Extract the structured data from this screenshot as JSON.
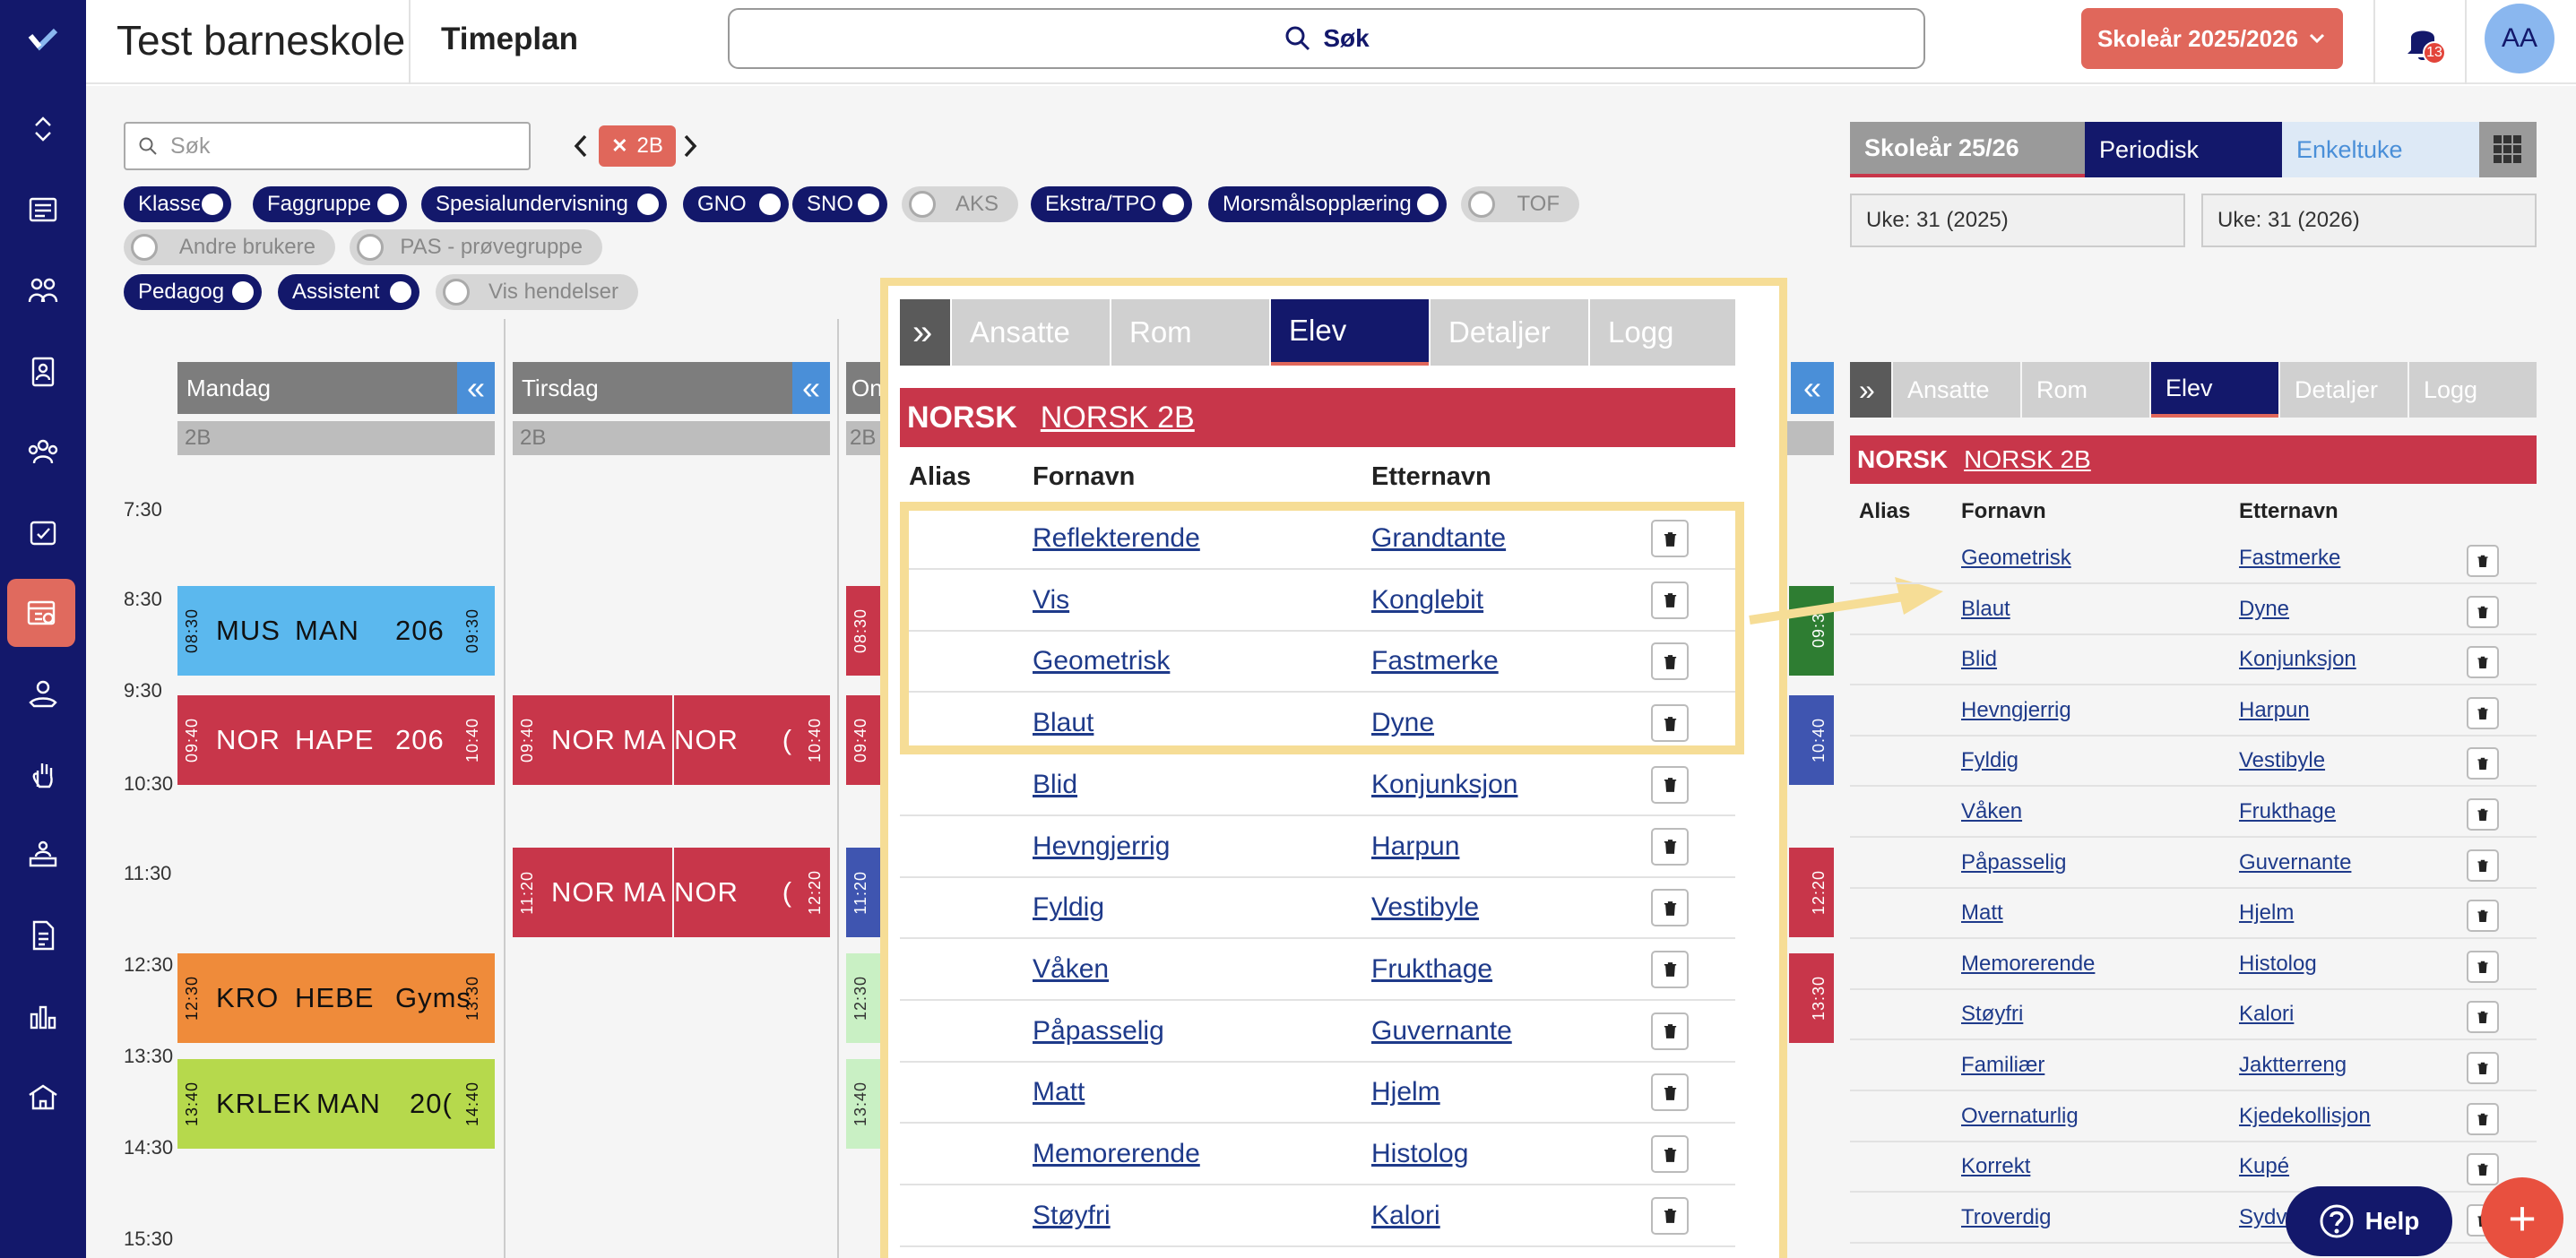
{
  "header": {
    "school_name": "Test barneskole",
    "page_title": "Timeplan",
    "search_label": "Søk",
    "year_button": "Skoleår 2025/2026",
    "notification_count": "13",
    "avatar_initials": "AA"
  },
  "toolbar": {
    "search_placeholder": "Søk",
    "class_chip": "2B"
  },
  "filters": [
    {
      "label": "Klasse",
      "on": true
    },
    {
      "label": "Faggruppe",
      "on": true
    },
    {
      "label": "Spesialundervisning",
      "on": true
    },
    {
      "label": "GNO",
      "on": true
    },
    {
      "label": "SNO",
      "on": true
    },
    {
      "label": "AKS",
      "on": false
    },
    {
      "label": "Ekstra/TPO",
      "on": true
    },
    {
      "label": "Morsmålsopplæring",
      "on": true
    },
    {
      "label": "TOF",
      "on": false
    },
    {
      "label": "Andre brukere",
      "on": false
    },
    {
      "label": "PAS - prøvegruppe",
      "on": false
    },
    {
      "label": "Pedagog",
      "on": true
    },
    {
      "label": "Assistent",
      "on": true
    },
    {
      "label": "Vis hendelser",
      "on": false
    }
  ],
  "view_tabs": [
    "Skoleår 25/26",
    "Periodisk",
    "Enkeltuke"
  ],
  "weeks": [
    "Uke: 31 (2025)",
    "Uke: 31 (2026)"
  ],
  "days": [
    {
      "name": "Mandag",
      "class": "2B"
    },
    {
      "name": "Tirsdag",
      "class": "2B"
    },
    {
      "name": "On",
      "class": "2B"
    }
  ],
  "times": [
    "7:30",
    "8:30",
    "9:30",
    "10:30",
    "11:30",
    "12:30",
    "13:30",
    "14:30",
    "15:30"
  ],
  "lessons": [
    {
      "start": "08:30",
      "end": "09:30",
      "subject": "MUS",
      "teacher": "MAN",
      "room": "206",
      "color": "#5bb8ee",
      "text": "#111"
    },
    {
      "start": "09:40",
      "end": "10:40",
      "subject": "NOR",
      "teacher": "HAPE",
      "room": "206",
      "color": "#c8364a",
      "text": "#fff"
    },
    {
      "start": "09:40",
      "end": "",
      "subject": "NOR",
      "teacher": "MA",
      "room": "",
      "color": "#c8364a",
      "text": "#fff"
    },
    {
      "start": "",
      "end": "10:40",
      "subject": "NOR",
      "teacher": "(",
      "room": "",
      "color": "#c8364a",
      "text": "#fff"
    },
    {
      "start": "11:20",
      "end": "",
      "subject": "NOR",
      "teacher": "MA",
      "room": "",
      "color": "#c8364a",
      "text": "#fff"
    },
    {
      "start": "",
      "end": "12:20",
      "subject": "NOR",
      "teacher": "(",
      "room": "",
      "color": "#c8364a",
      "text": "#fff"
    },
    {
      "start": "12:30",
      "end": "13:30",
      "subject": "KRO",
      "teacher": "HEBE",
      "room": "Gyms",
      "color": "#ef8b3a",
      "text": "#111"
    },
    {
      "start": "13:40",
      "end": "14:40",
      "subject": "KRLEK",
      "teacher": "MAN",
      "room": "20(",
      "color": "#b6d94c",
      "text": "#111"
    },
    {
      "start": "08:30",
      "color": "#c8364a",
      "text": "#fff"
    },
    {
      "start": "09:40",
      "color": "#c8364a",
      "text": "#fff"
    },
    {
      "start": "11:20",
      "color": "#3f55b0",
      "text": "#fff"
    },
    {
      "start": "12:30",
      "color": "#c9f0c4",
      "text": "#333"
    },
    {
      "start": "13:40",
      "color": "#c9f0c4",
      "text": "#333"
    },
    {
      "end": "09:3",
      "color": "#2e7d32",
      "text": "#fff"
    },
    {
      "end": "10:40",
      "color": "#3f55b0",
      "text": "#fff"
    },
    {
      "end": "12:20",
      "color": "#c8364a",
      "text": "#fff"
    },
    {
      "end": "13:30",
      "color": "#c8364a",
      "text": "#fff"
    }
  ],
  "popup": {
    "expand_glyph": "»",
    "tabs": [
      "Ansatte",
      "Rom",
      "Elev",
      "Detaljer",
      "Logg"
    ],
    "active_tab": "Elev",
    "subject": "NORSK",
    "group": "NORSK 2B",
    "columns": [
      "Alias",
      "Fornavn",
      "Etternavn"
    ],
    "students": [
      {
        "first": "Reflekterende",
        "last": "Grandtante"
      },
      {
        "first": "Vis",
        "last": "Konglebit"
      },
      {
        "first": "Geometrisk",
        "last": "Fastmerke"
      },
      {
        "first": "Blaut",
        "last": "Dyne"
      },
      {
        "first": "Blid",
        "last": "Konjunksjon"
      },
      {
        "first": "Hevngjerrig",
        "last": "Harpun"
      },
      {
        "first": "Fyldig",
        "last": "Vestibyle"
      },
      {
        "first": "Våken",
        "last": "Frukthage"
      },
      {
        "first": "Påpasselig",
        "last": "Guvernante"
      },
      {
        "first": "Matt",
        "last": "Hjelm"
      },
      {
        "first": "Memorerende",
        "last": "Histolog"
      },
      {
        "first": "Støyfri",
        "last": "Kalori"
      }
    ]
  },
  "right_panel": {
    "expand_glyph": "»",
    "tabs": [
      "Ansatte",
      "Rom",
      "Elev",
      "Detaljer",
      "Logg"
    ],
    "subject": "NORSK",
    "group": "NORSK 2B",
    "columns": [
      "Alias",
      "Fornavn",
      "Etternavn"
    ],
    "students": [
      {
        "first": "Geometrisk",
        "last": "Fastmerke"
      },
      {
        "first": "Blaut",
        "last": "Dyne"
      },
      {
        "first": "Blid",
        "last": "Konjunksjon"
      },
      {
        "first": "Hevngjerrig",
        "last": "Harpun"
      },
      {
        "first": "Fyldig",
        "last": "Vestibyle"
      },
      {
        "first": "Våken",
        "last": "Frukthage"
      },
      {
        "first": "Påpasselig",
        "last": "Guvernante"
      },
      {
        "first": "Matt",
        "last": "Hjelm"
      },
      {
        "first": "Memorerende",
        "last": "Histolog"
      },
      {
        "first": "Støyfri",
        "last": "Kalori"
      },
      {
        "first": "Familiær",
        "last": "Jaktterreng"
      },
      {
        "first": "Overnaturlig",
        "last": "Kjedekollisjon"
      },
      {
        "first": "Korrekt",
        "last": "Kupé"
      },
      {
        "first": "Troverdig",
        "last": "Sydv"
      }
    ]
  },
  "help_label": "Help",
  "fab_label": "+",
  "colors": {
    "navy": "#13186b",
    "accent": "#e0675b",
    "norsk": "#c8364a",
    "highlight": "#f6dd96"
  }
}
